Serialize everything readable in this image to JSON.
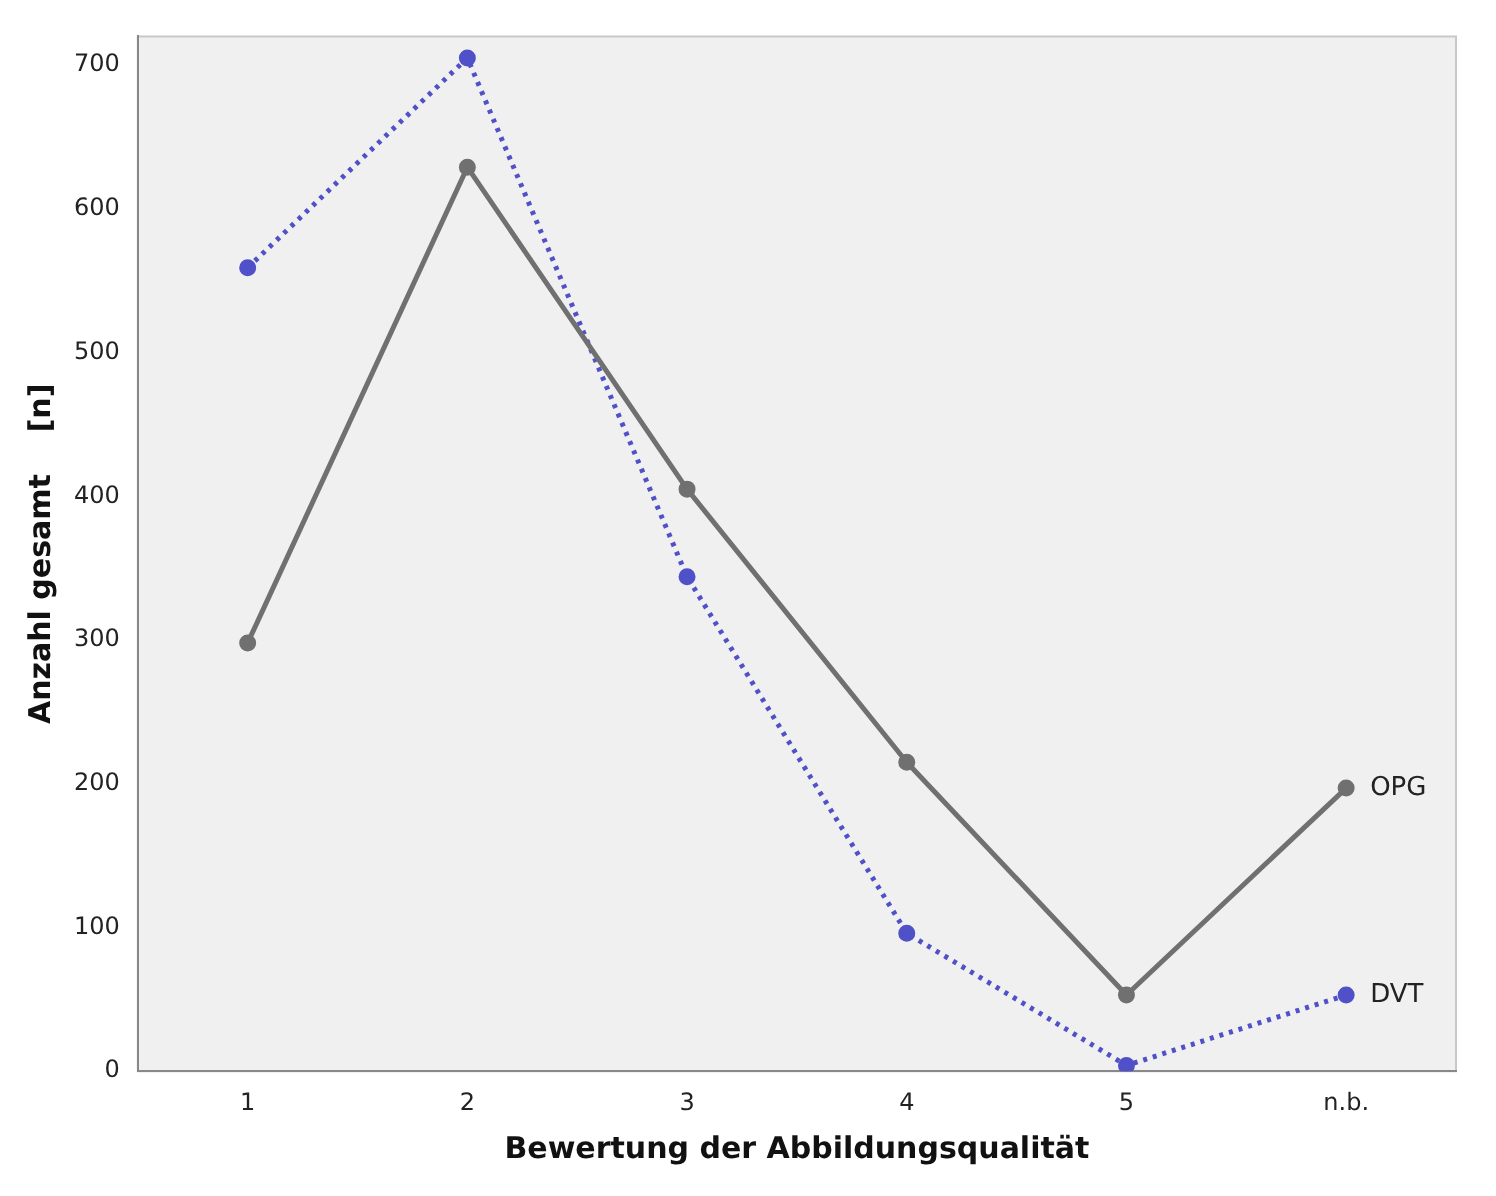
{
  "chart_data": {
    "type": "line",
    "xlabel": "Bewertung der Abbildungsqualität",
    "ylabel": "Anzahl gesamt    [n]",
    "categories": [
      "1",
      "2",
      "3",
      "4",
      "5",
      "n.b."
    ],
    "series": [
      {
        "name": "OPG",
        "color": "#707070",
        "values": [
          298,
          629,
          405,
          215,
          53,
          197
        ],
        "line_style": "solid"
      },
      {
        "name": "DVT",
        "color": "#5050c8",
        "values": [
          559,
          705,
          344,
          96,
          4,
          53
        ],
        "line_style": "dotted"
      }
    ],
    "ylim": [
      0,
      720
    ],
    "yticks": [
      0,
      100,
      200,
      300,
      400,
      500,
      600,
      700
    ],
    "grid": false,
    "legend": false,
    "marker": "circle"
  }
}
